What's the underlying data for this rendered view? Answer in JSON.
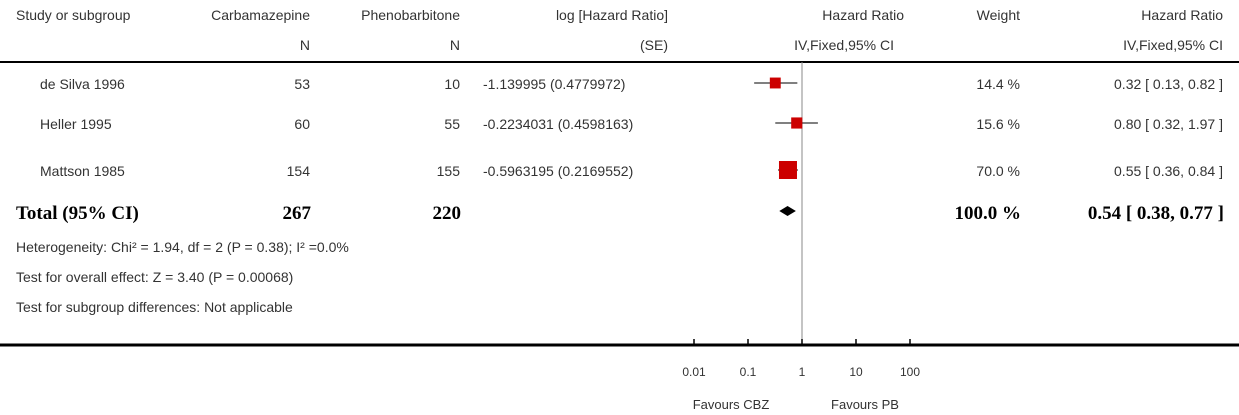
{
  "header": {
    "study": "Study or subgroup",
    "exp": "Carbamazepine",
    "exp_n": "N",
    "ctl": "Phenobarbitone",
    "ctl_n": "N",
    "loghr": "log [Hazard Ratio]",
    "loghr_se": "(SE)",
    "hr": "Hazard Ratio",
    "hr_method": "IV,Fixed,95% CI",
    "weight": "Weight",
    "hr_right": "Hazard Ratio",
    "hr_right_method": "IV,Fixed,95% CI"
  },
  "studies": [
    {
      "name": "de Silva 1996",
      "n_exp": "53",
      "n_ctl": "10",
      "loghr": "-1.139995 (0.4779972)",
      "weight": "14.4 %",
      "ci_text": "0.32 [ 0.13, 0.82 ]"
    },
    {
      "name": "Heller 1995",
      "n_exp": "60",
      "n_ctl": "55",
      "loghr": "-0.2234031 (0.4598163)",
      "weight": "15.6 %",
      "ci_text": "0.80 [ 0.32, 1.97 ]"
    },
    {
      "name": "Mattson 1985",
      "n_exp": "154",
      "n_ctl": "155",
      "loghr": "-0.5963195 (0.2169552)",
      "weight": "70.0 %",
      "ci_text": "0.55 [ 0.36, 0.84 ]"
    }
  ],
  "total": {
    "label": "Total (95% CI)",
    "n_exp": "267",
    "n_ctl": "220",
    "weight": "100.0 %",
    "ci_text": "0.54 [ 0.38, 0.77 ]"
  },
  "footnotes": {
    "heterogeneity": "Heterogeneity: Chi² = 1.94, df = 2 (P = 0.38); I² =0.0%",
    "overall": "Test for overall effect: Z = 3.40 (P = 0.00068)",
    "subgroup": "Test for subgroup differences: Not applicable"
  },
  "axis": {
    "favours_left": "Favours CBZ",
    "favours_right": "Favours PB"
  },
  "colors": {
    "marker": "#cc0000",
    "diamond": "#000000",
    "line": "#000000"
  },
  "chart_data": {
    "type": "forest",
    "scale": "log",
    "xlim": [
      0.01,
      100
    ],
    "reference_line": 1,
    "ticks": [
      {
        "value": 0.01,
        "label": "0.01"
      },
      {
        "value": 0.1,
        "label": "0.1"
      },
      {
        "value": 1,
        "label": "1"
      },
      {
        "value": 10,
        "label": "10"
      },
      {
        "value": 100,
        "label": "100"
      }
    ],
    "studies": [
      {
        "name": "de Silva 1996",
        "hr": 0.32,
        "lo": 0.13,
        "hi": 0.82,
        "weight": 14.4
      },
      {
        "name": "Heller 1995",
        "hr": 0.8,
        "lo": 0.32,
        "hi": 1.97,
        "weight": 15.6
      },
      {
        "name": "Mattson 1985",
        "hr": 0.55,
        "lo": 0.36,
        "hi": 0.84,
        "weight": 70.0
      }
    ],
    "total": {
      "hr": 0.54,
      "lo": 0.38,
      "hi": 0.77
    }
  }
}
